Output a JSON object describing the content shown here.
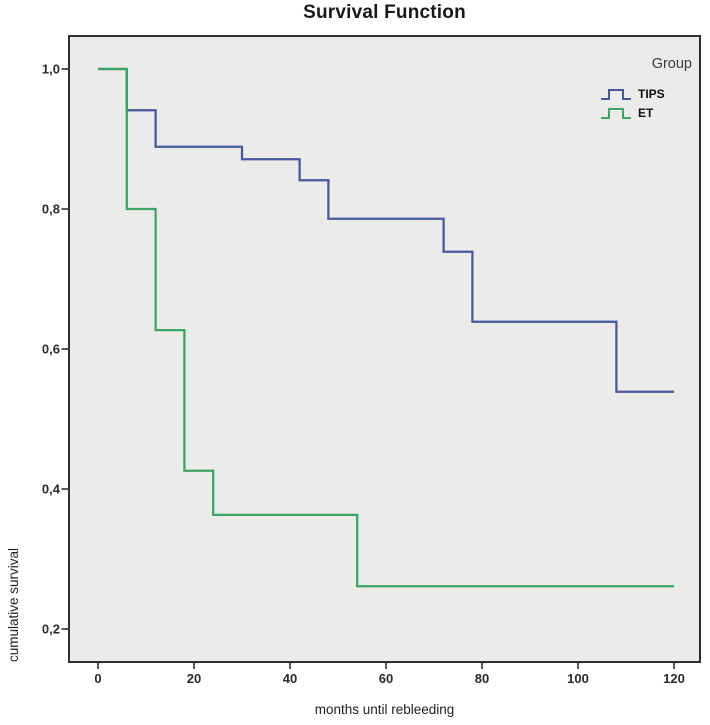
{
  "title": "Survival Function",
  "axes": {
    "x": {
      "label": "months until rebleeding"
    },
    "y": {
      "label": "cumulative survival"
    }
  },
  "legend": {
    "title": "Group",
    "entries": [
      {
        "label": "TIPS",
        "color": "#47589d"
      },
      {
        "label": "ET",
        "color": "#3aa564"
      }
    ]
  },
  "colors": {
    "plot_background": "#ebebe9",
    "plot_border": "#2f2f2f",
    "tick": "#2f2f2f",
    "tips_line": "#47589d",
    "et_line": "#3aa564"
  },
  "chart_data": {
    "type": "line",
    "variant": "kaplan-meier-step",
    "title": "Survival Function",
    "xlabel": "months until rebleeding",
    "ylabel": "cumulative survival",
    "xlim": [
      0,
      125
    ],
    "ylim": [
      0.153,
      1.047
    ],
    "grid": false,
    "legend_position": "top-right-inside",
    "x_ticks": [
      {
        "label": "0",
        "value": 0
      },
      {
        "label": "20",
        "value": 20
      },
      {
        "label": "40",
        "value": 40
      },
      {
        "label": "60",
        "value": 60
      },
      {
        "label": "80",
        "value": 80
      },
      {
        "label": "100",
        "value": 100
      },
      {
        "label": "120",
        "value": 120
      }
    ],
    "y_ticks": [
      {
        "label": "1,0",
        "value": 1.0
      },
      {
        "label": "0,8",
        "value": 0.8
      },
      {
        "label": "0,6",
        "value": 0.6
      },
      {
        "label": "0,4",
        "value": 0.4
      },
      {
        "label": "0,2",
        "value": 0.2
      }
    ],
    "series": [
      {
        "name": "TIPS",
        "color": "#47589d",
        "end_month": 120,
        "steps": [
          [
            0,
            1.0
          ],
          [
            6,
            0.941
          ],
          [
            12,
            0.889
          ],
          [
            30,
            0.871
          ],
          [
            42,
            0.841
          ],
          [
            48,
            0.786
          ],
          [
            72,
            0.739
          ],
          [
            78,
            0.639
          ],
          [
            108,
            0.539
          ]
        ]
      },
      {
        "name": "ET",
        "color": "#3aa564",
        "end_month": 120,
        "steps": [
          [
            0,
            1.0
          ],
          [
            6,
            0.8
          ],
          [
            12,
            0.627
          ],
          [
            18,
            0.426
          ],
          [
            24,
            0.363
          ],
          [
            54,
            0.261
          ]
        ]
      }
    ]
  }
}
